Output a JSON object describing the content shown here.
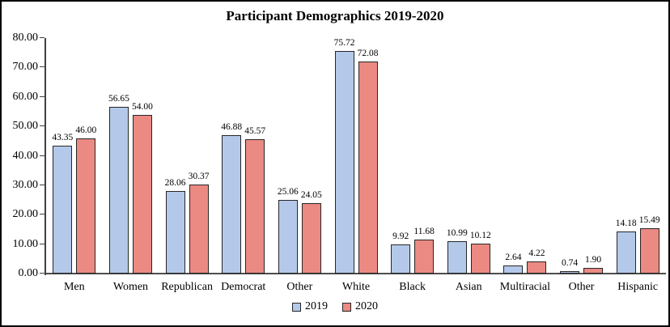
{
  "chart_data": {
    "type": "bar",
    "title": "Participant Demographics 2019-2020",
    "categories": [
      "Men",
      "Women",
      "Republican",
      "Democrat",
      "Other",
      "White",
      "Black",
      "Asian",
      "Multiracial",
      "Other",
      "Hispanic"
    ],
    "series": [
      {
        "name": "2019",
        "values": [
          43.35,
          56.65,
          28.06,
          46.88,
          25.06,
          75.72,
          9.92,
          10.99,
          2.64,
          0.74,
          14.18
        ],
        "fill": "#b4c9ea",
        "border": "#262626"
      },
      {
        "name": "2020",
        "values": [
          46.0,
          54.0,
          30.37,
          45.57,
          24.05,
          72.08,
          11.68,
          10.12,
          4.22,
          1.9,
          15.49
        ],
        "fill": "#ea8a83",
        "border": "#262626"
      }
    ],
    "ylim": [
      0,
      80
    ],
    "ytick_step": 10,
    "ytick_labels": [
      "0.00",
      "10.00",
      "20.00",
      "30.00",
      "40.00",
      "50.00",
      "60.00",
      "70.00",
      "80.00"
    ],
    "value_label_decimals": 2,
    "grid": false,
    "data_labels": true,
    "legend_position": "bottom",
    "xlabel": "",
    "ylabel": ""
  },
  "colors": {
    "axis": "#404040",
    "baseline": "#4d4d4d",
    "text": "#000000",
    "background": "#ffffff",
    "frame_border": "#000000"
  }
}
